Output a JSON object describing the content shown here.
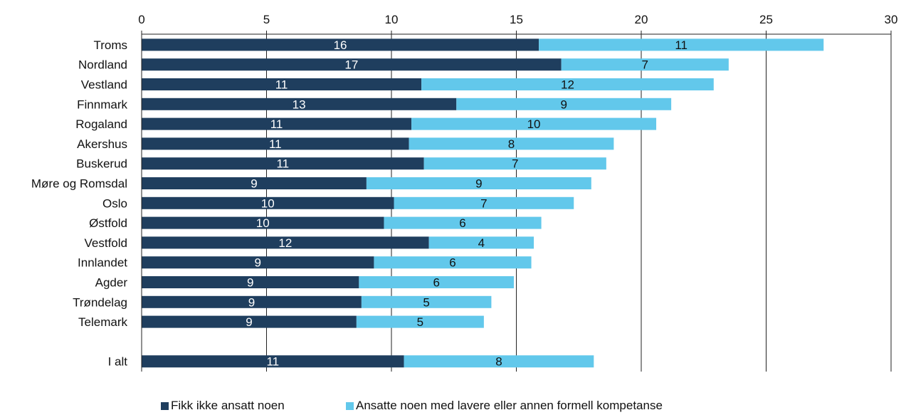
{
  "chart_data": {
    "type": "bar",
    "orientation": "horizontal",
    "stacked": true,
    "categories": [
      "Troms",
      "Nordland",
      "Vestland",
      "Finnmark",
      "Rogaland",
      "Akershus",
      "Buskerud",
      "Møre og Romsdal",
      "Oslo",
      "Østfold",
      "Vestfold",
      "Innlandet",
      "Agder",
      "Trøndelag",
      "Telemark",
      "",
      "I alt"
    ],
    "series": [
      {
        "name": "Fikk ikke ansatt noen",
        "color": "#1f3e5e",
        "values": [
          15.9,
          16.8,
          11.2,
          12.6,
          10.8,
          10.7,
          11.3,
          9.0,
          10.1,
          9.7,
          11.5,
          9.3,
          8.7,
          8.8,
          8.6,
          null,
          10.5
        ],
        "labels": [
          "16",
          "17",
          "11",
          "13",
          "11",
          "11",
          "11",
          "9",
          "10",
          "10",
          "12",
          "9",
          "9",
          "9",
          "9",
          "",
          "11"
        ]
      },
      {
        "name": "Ansatte noen med lavere eller annen formell kompetanse",
        "color": "#62c8eb",
        "values": [
          11.4,
          6.7,
          11.7,
          8.6,
          9.8,
          8.2,
          7.3,
          9.0,
          7.2,
          6.3,
          4.2,
          6.3,
          6.2,
          5.2,
          5.1,
          null,
          7.6
        ],
        "labels": [
          "11",
          "7",
          "12",
          "9",
          "10",
          "8",
          "7",
          "9",
          "7",
          "6",
          "4",
          "6",
          "6",
          "5",
          "5",
          "",
          "8"
        ]
      }
    ],
    "xlim": [
      0,
      30
    ],
    "xticks": [
      0,
      5,
      10,
      15,
      20,
      25,
      30
    ],
    "xtick_labels": [
      "0",
      "5",
      "10",
      "15",
      "20",
      "25",
      "30"
    ],
    "x_axis_position": "top",
    "grid": true,
    "legend_position": "bottom",
    "title": "",
    "xlabel": "",
    "ylabel": ""
  }
}
